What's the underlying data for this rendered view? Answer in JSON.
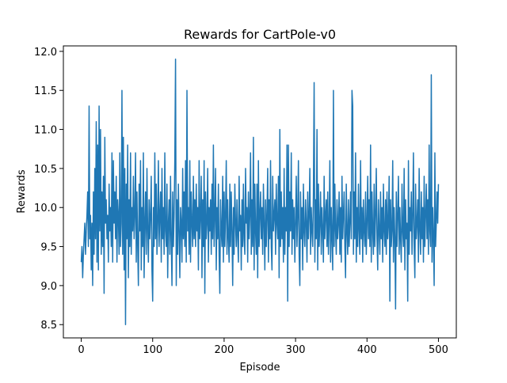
{
  "chart_data": {
    "type": "line",
    "title": "Rewards for CartPole-v0",
    "xlabel": "Episode",
    "ylabel": "Rewards",
    "color": "#1f77b4",
    "xlim": [
      -25,
      525
    ],
    "xticks": [
      0,
      100,
      200,
      300,
      400,
      500
    ],
    "ylim": [
      8.33,
      12.07
    ],
    "yticks": [
      {
        "value": 8.5,
        "label": "8.5"
      },
      {
        "value": 9.0,
        "label": "9.0"
      },
      {
        "value": 9.5,
        "label": "9.5"
      },
      {
        "value": 10.0,
        "label": "10.0"
      },
      {
        "value": 10.5,
        "label": "10.5"
      },
      {
        "value": 11.0,
        "label": "11.0"
      },
      {
        "value": 11.5,
        "label": "11.5"
      },
      {
        "value": 12.0,
        "label": "12.0"
      }
    ],
    "values": [
      9.3,
      9.5,
      9.1,
      9.4,
      9.6,
      9.8,
      9.4,
      9.7,
      9.9,
      10.2,
      9.5,
      11.3,
      9.6,
      9.9,
      9.2,
      9.8,
      9.0,
      10.2,
      9.4,
      10.5,
      9.6,
      11.1,
      9.3,
      10.8,
      9.2,
      11.3,
      9.7,
      11.0,
      9.4,
      10.2,
      9.5,
      10.4,
      8.9,
      10.9,
      9.8,
      10.1,
      9.6,
      9.9,
      9.3,
      10.3,
      9.7,
      10.0,
      9.5,
      10.7,
      9.3,
      10.6,
      9.8,
      10.2,
      9.6,
      10.4,
      9.3,
      10.1,
      9.9,
      9.4,
      10.7,
      9.5,
      9.8,
      11.5,
      9.4,
      10.9,
      9.2,
      10.5,
      8.5,
      10.3,
      9.6,
      10.8,
      9.1,
      10.1,
      9.5,
      10.7,
      9.4,
      10.0,
      9.7,
      10.4,
      9.6,
      9.9,
      10.7,
      9.3,
      10.2,
      9.5,
      9.0,
      10.3,
      9.7,
      10.6,
      9.2,
      10.0,
      9.5,
      10.7,
      9.1,
      9.8,
      10.2,
      9.4,
      10.5,
      9.7,
      9.3,
      10.1,
      9.6,
      9.9,
      10.4,
      9.2,
      8.8,
      10.0,
      9.5,
      10.7,
      9.6,
      10.3,
      9.4,
      9.8,
      10.6,
      9.5,
      9.9,
      10.2,
      9.3,
      10.5,
      9.6,
      10.0,
      9.4,
      10.7,
      9.7,
      9.5,
      10.3,
      9.1,
      9.8,
      10.1,
      9.4,
      10.4,
      9.6,
      9.0,
      10.2,
      9.5,
      9.9,
      10.6,
      11.9,
      9.0,
      10.1,
      9.4,
      10.3,
      9.7,
      9.1,
      10.0,
      9.8,
      9.3,
      10.5,
      9.6,
      10.2,
      9.5,
      10.6,
      9.3,
      11.5,
      9.7,
      10.0,
      9.4,
      10.6,
      9.3,
      10.2,
      9.8,
      9.5,
      10.4,
      9.6,
      10.1,
      9.5,
      10.3,
      9.7,
      10.0,
      9.2,
      10.6,
      9.6,
      9.9,
      10.4,
      9.1,
      10.1,
      9.5,
      10.6,
      8.9,
      10.2,
      9.6,
      9.8,
      10.5,
      9.3,
      10.0,
      9.7,
      10.1,
      9.4,
      10.3,
      9.6,
      10.8,
      9.5,
      9.9,
      10.5,
      9.2,
      10.0,
      9.6,
      10.3,
      9.4,
      8.9,
      10.1,
      9.7,
      9.5,
      10.4,
      9.3,
      10.2,
      9.5,
      9.9,
      10.6,
      9.4,
      10.1,
      9.6,
      9.3,
      10.3,
      9.5,
      10.2,
      9.7,
      9.0,
      10.0,
      9.4,
      10.3,
      9.8,
      9.5,
      10.1,
      9.6,
      9.3,
      10.4,
      9.7,
      9.9,
      9.2,
      10.1,
      9.5,
      10.3,
      9.6,
      9.4,
      10.5,
      9.8,
      10.0,
      9.3,
      10.2,
      9.6,
      9.9,
      10.7,
      9.4,
      10.1,
      9.5,
      10.9,
      9.2,
      10.3,
      9.7,
      9.4,
      10.3,
      9.1,
      10.6,
      9.5,
      9.9,
      10.2,
      9.6,
      10.0,
      9.4,
      10.3,
      9.8,
      9.2,
      10.1,
      9.5,
      9.9,
      10.5,
      9.3,
      10.1,
      9.6,
      10.6,
      9.5,
      9.2,
      10.4,
      9.7,
      9.9,
      10.1,
      9.4,
      10.3,
      9.8,
      9.6,
      10.4,
      9.1,
      11.0,
      9.5,
      10.2,
      9.6,
      10.0,
      9.3,
      10.5,
      9.4,
      10.0,
      9.7,
      10.8,
      8.8,
      10.8,
      9.5,
      10.2,
      9.7,
      10.7,
      9.4,
      10.1,
      9.6,
      10.0,
      9.3,
      9.8,
      10.4,
      9.5,
      9.9,
      10.6,
      9.4,
      9.0,
      10.2,
      9.6,
      10.0,
      9.2,
      10.3,
      9.7,
      9.5,
      10.1,
      9.8,
      9.3,
      10.2,
      9.6,
      9.9,
      10.5,
      9.4,
      10.0,
      9.7,
      9.5,
      10.2,
      11.6,
      9.3,
      10.1,
      9.6,
      11.0,
      9.2,
      10.3,
      9.5,
      9.8,
      10.2,
      9.4,
      10.0,
      9.7,
      9.3,
      10.4,
      9.6,
      9.9,
      10.1,
      9.5,
      10.2,
      9.4,
      9.8,
      10.6,
      9.3,
      10.0,
      9.6,
      9.2,
      11.5,
      9.5,
      10.3,
      9.7,
      9.4,
      10.1,
      9.6,
      9.8,
      10.2,
      9.4,
      10.0,
      9.3,
      10.4,
      9.6,
      9.9,
      10.2,
      9.5,
      9.1,
      10.3,
      9.7,
      9.4,
      10.1,
      9.5,
      9.8,
      10.2,
      9.6,
      11.5,
      11.3,
      9.4,
      10.2,
      9.6,
      10.7,
      9.3,
      10.0,
      9.5,
      10.3,
      9.7,
      9.4,
      10.6,
      9.6,
      10.0,
      9.3,
      10.1,
      9.7,
      9.5,
      10.2,
      9.4,
      9.8,
      10.4,
      9.6,
      10.1,
      9.5,
      10.8,
      9.3,
      10.2,
      9.7,
      9.4,
      10.3,
      9.5,
      9.9,
      10.5,
      9.6,
      9.2,
      10.1,
      9.7,
      9.4,
      10.2,
      9.6,
      10.0,
      9.3,
      10.3,
      9.7,
      9.5,
      10.1,
      9.4,
      10.2,
      9.6,
      9.8,
      10.4,
      8.8,
      10.1,
      9.5,
      9.7,
      10.6,
      9.3,
      10.0,
      9.6,
      8.7,
      10.2,
      9.5,
      9.9,
      10.4,
      9.4,
      10.0,
      9.6,
      9.3,
      10.3,
      9.7,
      9.5,
      10.5,
      9.2,
      10.1,
      9.6,
      9.8,
      8.8,
      10.6,
      9.4,
      10.0,
      9.7,
      10.2,
      9.4,
      9.9,
      10.7,
      9.5,
      9.1,
      10.3,
      9.6,
      9.8,
      10.1,
      9.3,
      10.5,
      9.7,
      9.4,
      10.2,
      9.6,
      10.0,
      9.3,
      10.4,
      9.5,
      9.9,
      10.3,
      9.6,
      10.1,
      9.4,
      10.8,
      9.7,
      9.5,
      11.7,
      9.3,
      10.0,
      9.6,
      9.0,
      10.7,
      9.5,
      9.8,
      10.2,
      9.8,
      10.3
    ]
  }
}
